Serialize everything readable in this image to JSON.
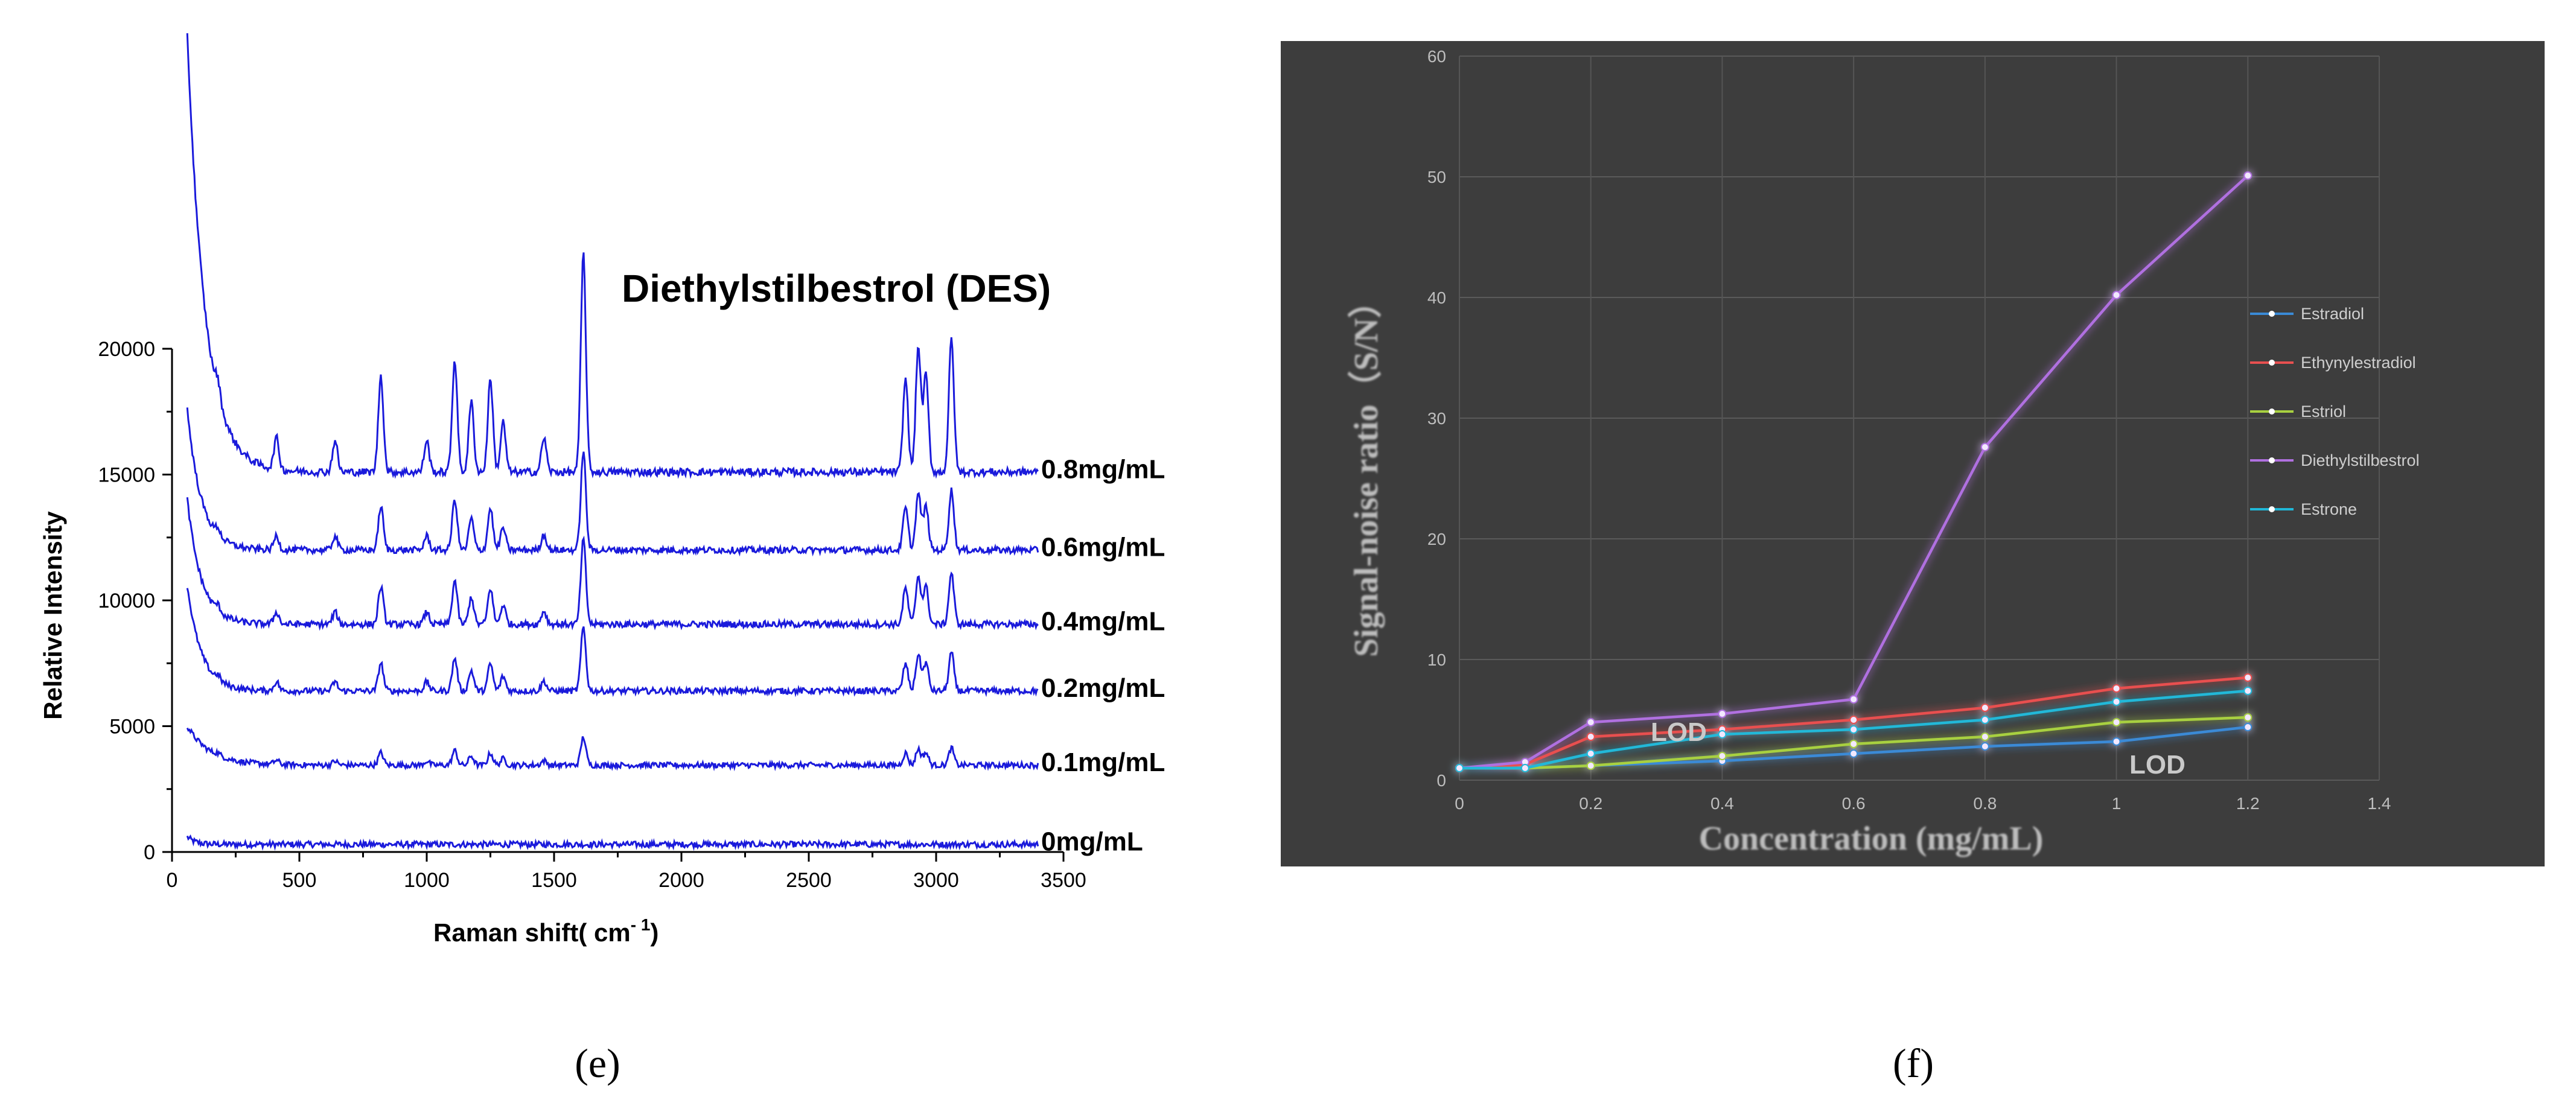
{
  "panels": {
    "e": {
      "caption": "(e)",
      "chart_data": {
        "type": "line",
        "title": "Diethylstilbestrol (DES)",
        "xlabel": "Raman shift(  cm",
        "xlabel_sup": "- 1",
        "xlabel_close": ")",
        "ylabel": "Relative Intensity",
        "xlim": [
          0,
          3500
        ],
        "ylim": [
          0,
          20000
        ],
        "x_ticks": [
          0,
          500,
          1000,
          1500,
          2000,
          2500,
          3000,
          3500
        ],
        "y_ticks": [
          0,
          5000,
          10000,
          15000,
          20000
        ],
        "x_range": [
          60,
          3400
        ],
        "peaks": [
          {
            "x": 180,
            "h": 0.1
          },
          {
            "x": 410,
            "h": 0.2
          },
          {
            "x": 640,
            "h": 0.2
          },
          {
            "x": 820,
            "h": 0.62
          },
          {
            "x": 1000,
            "h": 0.2
          },
          {
            "x": 1110,
            "h": 0.72
          },
          {
            "x": 1175,
            "h": 0.45
          },
          {
            "x": 1250,
            "h": 0.6
          },
          {
            "x": 1300,
            "h": 0.32
          },
          {
            "x": 1460,
            "h": 0.22
          },
          {
            "x": 1615,
            "h": 1.4
          },
          {
            "x": 2880,
            "h": 0.6
          },
          {
            "x": 2930,
            "h": 0.8
          },
          {
            "x": 2960,
            "h": 0.62
          },
          {
            "x": 3060,
            "h": 0.85
          }
        ],
        "series": [
          {
            "name": "0mg/mL",
            "baseline": 300,
            "start": 600,
            "decay": 30,
            "scale": 0.0,
            "noise": 120
          },
          {
            "name": "0.1mg/mL",
            "baseline": 3450,
            "start": 5000,
            "decay": 90,
            "scale": 800,
            "noise": 110
          },
          {
            "name": "0.2mg/mL",
            "baseline": 6400,
            "start": 10600,
            "decay": 55,
            "scale": 1800,
            "noise": 120
          },
          {
            "name": "0.4mg/mL",
            "baseline": 9050,
            "start": 14000,
            "decay": 55,
            "scale": 2400,
            "noise": 130
          },
          {
            "name": "0.6mg/mL",
            "baseline": 12000,
            "start": 17600,
            "decay": 55,
            "scale": 2800,
            "noise": 130
          },
          {
            "name": "0.8mg/mL",
            "baseline": 15100,
            "start": 32500,
            "decay": 70,
            "scale": 6200,
            "noise": 150
          }
        ]
      }
    },
    "f": {
      "caption": "(f)",
      "chart_data": {
        "type": "line",
        "xlabel": "Concentration (mg/mL)",
        "ylabel": "Signal-noise ratio（S/N）",
        "xlim": [
          0,
          1.4
        ],
        "ylim": [
          0,
          60
        ],
        "x_ticks": [
          0,
          0.2,
          0.4,
          0.6,
          0.8,
          1,
          1.2,
          1.4
        ],
        "y_ticks": [
          0,
          10,
          20,
          30,
          40,
          50,
          60
        ],
        "x": [
          0,
          0.1,
          0.2,
          0.4,
          0.6,
          0.8,
          1,
          1.2
        ],
        "series": [
          {
            "name": "Estradiol",
            "color": "#3a8ad6",
            "values": [
              1,
              1,
              1.2,
              1.6,
              2.2,
              2.8,
              3.2,
              4.4
            ]
          },
          {
            "name": "Ethynylestradiol",
            "color": "#e85050",
            "values": [
              1,
              1.3,
              3.6,
              4.2,
              5.0,
              6.0,
              7.6,
              8.5
            ]
          },
          {
            "name": "Estriol",
            "color": "#a8d040",
            "values": [
              1,
              1,
              1.2,
              2.0,
              3.0,
              3.6,
              4.8,
              5.2
            ]
          },
          {
            "name": "Diethylstilbestrol",
            "color": "#b070e0",
            "values": [
              1,
              1.5,
              4.8,
              5.5,
              6.7,
              27.6,
              40.2,
              50.1
            ]
          },
          {
            "name": "Estrone",
            "color": "#20b8d8",
            "values": [
              1,
              1,
              2.2,
              3.8,
              4.2,
              5.0,
              6.5,
              7.4
            ]
          }
        ],
        "annotations": [
          "LOD",
          "LOD"
        ]
      }
    }
  }
}
